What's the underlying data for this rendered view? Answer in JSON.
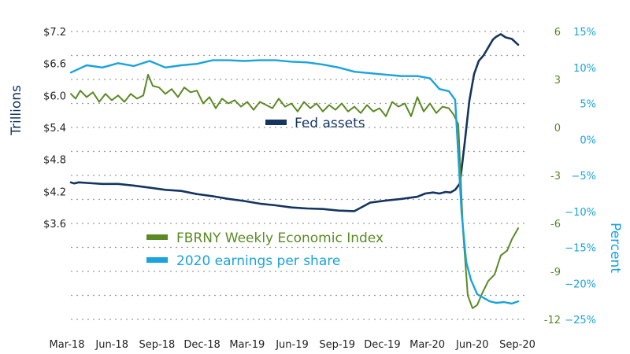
{
  "chart_data": {
    "type": "line",
    "title": "",
    "x_axis": {
      "tick_labels": [
        "Mar-18",
        "Jun-18",
        "Sep-18",
        "Dec-18",
        "Mar-19",
        "Jun-19",
        "Sep-19",
        "Dec-19",
        "Mar-20",
        "Jun-20",
        "Sep-20"
      ],
      "range": [
        0,
        30
      ]
    },
    "y_left": {
      "label": "Trillions",
      "tick_labels": [
        "$3.6",
        "$4.2",
        "$4.8",
        "$5.4",
        "$6.0",
        "$6.6",
        "$7.2"
      ],
      "tick_values": [
        3.6,
        4.2,
        4.8,
        5.4,
        6.0,
        6.6,
        7.2
      ],
      "range": [
        1.8,
        7.2
      ]
    },
    "y_right_index": {
      "tick_labels": [
        "6",
        "3",
        "0",
        "-3",
        "-6",
        "-9",
        "-12"
      ],
      "tick_values": [
        6,
        3,
        0,
        -3,
        -6,
        -9,
        -12
      ],
      "range": [
        -12,
        6
      ]
    },
    "y_right_pct": {
      "label": "Percent",
      "tick_labels": [
        "15%",
        "10%",
        "5%",
        "0%",
        "−5%",
        "−10%",
        "−15%",
        "−20%",
        "−25%"
      ],
      "tick_values": [
        15,
        10,
        5,
        0,
        -5,
        -10,
        -15,
        -20,
        -25
      ],
      "range": [
        -25,
        15
      ]
    },
    "series": [
      {
        "name": "Fed assets",
        "axis": "left",
        "color": "#13355f",
        "x": [
          0,
          0.2,
          0.5,
          1,
          2,
          3,
          4,
          5,
          6,
          7,
          8,
          9,
          10,
          11,
          12,
          13,
          14,
          15,
          16,
          17,
          18,
          19,
          20,
          21,
          22,
          22.5,
          23,
          23.4,
          23.8,
          24.1,
          24.4,
          24.7,
          25,
          25.3,
          25.6,
          25.9,
          26.2,
          26.5,
          26.8,
          27,
          27.3,
          27.6,
          28,
          28.4
        ],
        "y": [
          4.37,
          4.35,
          4.37,
          4.36,
          4.34,
          4.34,
          4.31,
          4.27,
          4.23,
          4.21,
          4.15,
          4.11,
          4.06,
          4.02,
          3.97,
          3.94,
          3.9,
          3.88,
          3.87,
          3.84,
          3.83,
          3.99,
          4.03,
          4.06,
          4.1,
          4.16,
          4.18,
          4.16,
          4.19,
          4.18,
          4.23,
          4.35,
          5.1,
          5.9,
          6.4,
          6.65,
          6.75,
          6.9,
          7.05,
          7.1,
          7.15,
          7.09,
          7.06,
          6.95
        ]
      },
      {
        "name": "FBRNY Weekly Economic Index",
        "axis": "right_index",
        "color": "#5b8a24",
        "x": [
          0,
          0.3,
          0.6,
          1,
          1.4,
          1.8,
          2.2,
          2.6,
          3,
          3.4,
          3.8,
          4.2,
          4.6,
          4.9,
          5.2,
          5.6,
          6,
          6.4,
          6.8,
          7.2,
          7.6,
          8,
          8.4,
          8.8,
          9.2,
          9.6,
          10,
          10.4,
          10.8,
          11.2,
          11.6,
          12,
          12.4,
          12.8,
          13.2,
          13.6,
          14,
          14.4,
          14.8,
          15.2,
          15.6,
          16,
          16.4,
          16.8,
          17.2,
          17.6,
          18,
          18.4,
          18.8,
          19.2,
          19.6,
          20,
          20.4,
          20.8,
          21.2,
          21.6,
          22,
          22.4,
          22.8,
          23.2,
          23.6,
          24,
          24.3,
          24.6,
          24.9,
          25.2,
          25.5,
          25.8,
          26.1,
          26.5,
          26.9,
          27.3,
          27.7,
          28,
          28.4
        ],
        "y": [
          2.1,
          1.8,
          2.3,
          1.9,
          2.2,
          1.6,
          2.1,
          1.7,
          2.0,
          1.6,
          2.1,
          1.8,
          2.0,
          3.3,
          2.6,
          2.5,
          2.1,
          2.4,
          1.9,
          2.5,
          2.2,
          2.3,
          1.5,
          1.9,
          1.2,
          1.8,
          1.5,
          1.7,
          1.3,
          1.6,
          1.1,
          1.6,
          1.4,
          1.2,
          1.8,
          1.3,
          1.5,
          1.0,
          1.6,
          1.2,
          1.5,
          1.0,
          1.4,
          1.1,
          1.5,
          1.0,
          1.3,
          0.9,
          1.4,
          1.0,
          1.2,
          0.7,
          1.6,
          1.3,
          1.5,
          0.7,
          1.9,
          1.0,
          1.5,
          0.9,
          1.3,
          1.2,
          0.8,
          0.2,
          -6.5,
          -10.5,
          -11.3,
          -11.1,
          -10.4,
          -9.6,
          -9.2,
          -8.0,
          -7.7,
          -7.0,
          -6.3
        ]
      },
      {
        "name": "2020 earnings per share",
        "axis": "right_pct",
        "color": "#1aa3dc",
        "x": [
          0,
          1,
          2,
          3,
          4,
          5,
          6,
          7,
          8,
          9,
          10,
          11,
          12,
          13,
          14,
          15,
          16,
          17,
          18,
          19,
          20,
          21,
          22,
          22.8,
          23.4,
          24,
          24.4,
          24.8,
          25.1,
          25.4,
          25.8,
          26.2,
          26.6,
          27,
          27.5,
          28,
          28.4
        ],
        "y": [
          9.3,
          10.3,
          10.0,
          10.6,
          10.2,
          10.9,
          10.0,
          10.3,
          10.5,
          11.0,
          11.0,
          10.9,
          11.0,
          11.0,
          10.8,
          10.7,
          10.4,
          10.0,
          9.4,
          9.2,
          9.0,
          8.8,
          8.8,
          8.5,
          7.0,
          6.7,
          5.5,
          -10.0,
          -17.0,
          -19.5,
          -21.5,
          -22.0,
          -22.5,
          -22.7,
          -22.6,
          -22.8,
          -22.5
        ]
      }
    ],
    "legend": {
      "fed_assets": "Fed assets",
      "fbrny": "FBRNY Weekly Economic Index",
      "eps": "2020 earnings per share"
    }
  }
}
